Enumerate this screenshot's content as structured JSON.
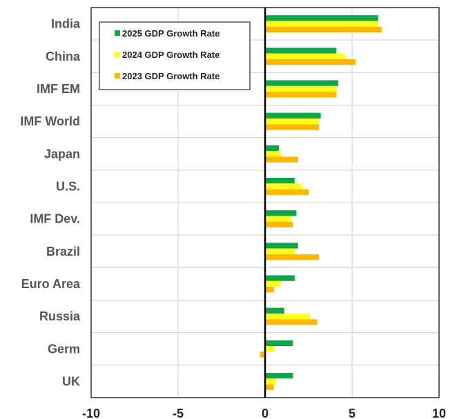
{
  "chart_data": {
    "type": "bar",
    "orientation": "horizontal",
    "categories": [
      "India",
      "China",
      "IMF EM ",
      "IMF World",
      "Japan",
      "U.S.",
      "IMF Dev.",
      "Brazil",
      "Euro Area",
      "Russia",
      "Germ",
      "UK"
    ],
    "series": [
      {
        "name": "2025 GDP Growth Rate",
        "color": "#12a64a",
        "values": [
          6.5,
          4.1,
          4.2,
          3.2,
          0.8,
          1.7,
          1.8,
          1.9,
          1.7,
          1.1,
          1.6,
          1.6
        ]
      },
      {
        "name": "2024 GDP Growth Rate",
        "color": "#ffff1a",
        "values": [
          6.5,
          4.6,
          4.1,
          3.1,
          0.9,
          2.1,
          1.5,
          1.7,
          0.9,
          2.6,
          0.5,
          0.6
        ]
      },
      {
        "name": "2023 GDP Growth Rate",
        "color": "#ffb800",
        "values": [
          6.7,
          5.2,
          4.1,
          3.1,
          1.9,
          2.5,
          1.6,
          3.1,
          0.5,
          3.0,
          -0.3,
          0.5
        ]
      }
    ],
    "xlim": [
      -10,
      10
    ],
    "xticks": [
      "-10",
      "-5",
      "0",
      "5",
      "10"
    ],
    "grid": true,
    "legend_position": "top-left"
  }
}
